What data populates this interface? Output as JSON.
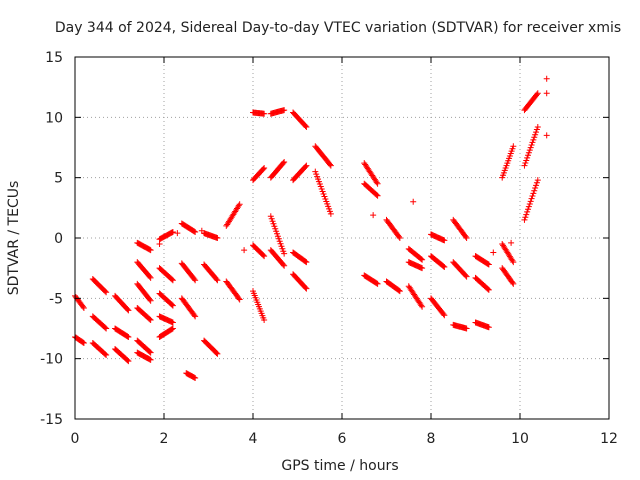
{
  "chart_data": {
    "type": "scatter",
    "title": "Day 344 of 2024, Sidereal Day-to-day VTEC variation (SDTVAR) for receiver xmis",
    "xlabel": "GPS time / hours",
    "ylabel": "SDTVAR / TECUs",
    "xlim": [
      0,
      12
    ],
    "ylim": [
      -15,
      15
    ],
    "xticks": [
      0,
      2,
      4,
      6,
      8,
      10,
      12
    ],
    "yticks": [
      -15,
      -10,
      -5,
      0,
      5,
      10,
      15
    ],
    "xtick_labels": [
      "0",
      "2",
      "4",
      "6",
      "8",
      "10",
      "12"
    ],
    "ytick_labels": [
      "-15",
      "-10",
      "-5",
      "0",
      "5",
      "10",
      "15"
    ],
    "grid": true,
    "marker": "+",
    "marker_color": "#ff0000",
    "segments": [
      {
        "x0": 0.0,
        "x1": 0.2,
        "y0": -4.8,
        "y1": -5.8
      },
      {
        "x0": 0.0,
        "x1": 0.2,
        "y0": -8.2,
        "y1": -8.7
      },
      {
        "x0": 0.4,
        "x1": 0.7,
        "y0": -3.4,
        "y1": -4.5
      },
      {
        "x0": 0.4,
        "x1": 0.7,
        "y0": -6.5,
        "y1": -7.5
      },
      {
        "x0": 0.4,
        "x1": 0.7,
        "y0": -8.7,
        "y1": -9.7
      },
      {
        "x0": 0.9,
        "x1": 1.2,
        "y0": -4.8,
        "y1": -6.0
      },
      {
        "x0": 0.9,
        "x1": 1.2,
        "y0": -7.5,
        "y1": -8.2
      },
      {
        "x0": 0.9,
        "x1": 1.2,
        "y0": -9.2,
        "y1": -10.2
      },
      {
        "x0": 1.4,
        "x1": 1.7,
        "y0": -0.4,
        "y1": -1.0
      },
      {
        "x0": 1.4,
        "x1": 1.7,
        "y0": -2.0,
        "y1": -3.3
      },
      {
        "x0": 1.4,
        "x1": 1.7,
        "y0": -3.8,
        "y1": -5.2
      },
      {
        "x0": 1.4,
        "x1": 1.7,
        "y0": -5.8,
        "y1": -6.8
      },
      {
        "x0": 1.4,
        "x1": 1.7,
        "y0": -8.5,
        "y1": -9.5
      },
      {
        "x0": 1.4,
        "x1": 1.7,
        "y0": -9.5,
        "y1": -10.1
      },
      {
        "x0": 1.9,
        "x1": 2.2,
        "y0": -0.1,
        "y1": 0.5
      },
      {
        "x0": 1.9,
        "x1": 2.2,
        "y0": -2.5,
        "y1": -3.5
      },
      {
        "x0": 1.9,
        "x1": 2.2,
        "y0": -4.6,
        "y1": -5.6
      },
      {
        "x0": 1.9,
        "x1": 2.2,
        "y0": -6.5,
        "y1": -7.0
      },
      {
        "x0": 1.9,
        "x1": 2.2,
        "y0": -8.2,
        "y1": -7.5
      },
      {
        "x0": 2.4,
        "x1": 2.7,
        "y0": 1.2,
        "y1": 0.5
      },
      {
        "x0": 2.4,
        "x1": 2.7,
        "y0": -2.1,
        "y1": -3.5
      },
      {
        "x0": 2.4,
        "x1": 2.7,
        "y0": -5.0,
        "y1": -6.5
      },
      {
        "x0": 2.5,
        "x1": 2.7,
        "y0": -11.2,
        "y1": -11.6
      },
      {
        "x0": 2.9,
        "x1": 3.2,
        "y0": 0.4,
        "y1": 0.0
      },
      {
        "x0": 2.9,
        "x1": 3.2,
        "y0": -2.2,
        "y1": -3.5
      },
      {
        "x0": 2.9,
        "x1": 3.2,
        "y0": -8.5,
        "y1": -9.6
      },
      {
        "x0": 3.4,
        "x1": 3.7,
        "y0": 1.0,
        "y1": 2.8
      },
      {
        "x0": 3.4,
        "x1": 3.7,
        "y0": -3.6,
        "y1": -5.1
      },
      {
        "x0": 4.0,
        "x1": 4.25,
        "y0": 4.8,
        "y1": 5.8
      },
      {
        "x0": 4.0,
        "x1": 4.25,
        "y0": 10.4,
        "y1": 10.3
      },
      {
        "x0": 4.0,
        "x1": 4.25,
        "y0": -0.6,
        "y1": -1.5
      },
      {
        "x0": 4.0,
        "x1": 4.25,
        "y0": -4.4,
        "y1": -6.8
      },
      {
        "x0": 4.4,
        "x1": 4.7,
        "y0": 5.0,
        "y1": 6.3
      },
      {
        "x0": 4.4,
        "x1": 4.7,
        "y0": 10.3,
        "y1": 10.6
      },
      {
        "x0": 4.4,
        "x1": 4.7,
        "y0": 1.8,
        "y1": -1.3
      },
      {
        "x0": 4.4,
        "x1": 4.7,
        "y0": -1.0,
        "y1": -2.3
      },
      {
        "x0": 4.9,
        "x1": 5.2,
        "y0": 10.4,
        "y1": 9.2
      },
      {
        "x0": 4.9,
        "x1": 5.2,
        "y0": 4.8,
        "y1": 6.0
      },
      {
        "x0": 4.9,
        "x1": 5.2,
        "y0": -1.2,
        "y1": -2.0
      },
      {
        "x0": 4.9,
        "x1": 5.2,
        "y0": -3.0,
        "y1": -4.2
      },
      {
        "x0": 5.4,
        "x1": 5.75,
        "y0": 7.6,
        "y1": 6.0
      },
      {
        "x0": 5.4,
        "x1": 5.75,
        "y0": 5.5,
        "y1": 2.0
      },
      {
        "x0": 6.5,
        "x1": 6.8,
        "y0": 6.2,
        "y1": 4.5
      },
      {
        "x0": 6.5,
        "x1": 6.8,
        "y0": 4.5,
        "y1": 3.5
      },
      {
        "x0": 6.5,
        "x1": 6.8,
        "y0": -3.1,
        "y1": -3.8
      },
      {
        "x0": 7.0,
        "x1": 7.3,
        "y0": 1.5,
        "y1": 0.0
      },
      {
        "x0": 7.0,
        "x1": 7.3,
        "y0": -3.6,
        "y1": -4.4
      },
      {
        "x0": 7.5,
        "x1": 7.8,
        "y0": -0.9,
        "y1": -1.8
      },
      {
        "x0": 7.5,
        "x1": 7.8,
        "y0": -2.0,
        "y1": -2.5
      },
      {
        "x0": 7.5,
        "x1": 7.8,
        "y0": -4.0,
        "y1": -5.7
      },
      {
        "x0": 8.0,
        "x1": 8.3,
        "y0": 0.3,
        "y1": -0.2
      },
      {
        "x0": 8.0,
        "x1": 8.3,
        "y0": -5.0,
        "y1": -6.4
      },
      {
        "x0": 8.0,
        "x1": 8.3,
        "y0": -1.5,
        "y1": -2.4
      },
      {
        "x0": 8.5,
        "x1": 8.8,
        "y0": 1.5,
        "y1": 0.0
      },
      {
        "x0": 8.5,
        "x1": 8.8,
        "y0": -2.0,
        "y1": -3.2
      },
      {
        "x0": 8.5,
        "x1": 8.8,
        "y0": -7.2,
        "y1": -7.5
      },
      {
        "x0": 9.0,
        "x1": 9.3,
        "y0": -1.5,
        "y1": -2.2
      },
      {
        "x0": 9.0,
        "x1": 9.3,
        "y0": -3.3,
        "y1": -4.3
      },
      {
        "x0": 9.0,
        "x1": 9.3,
        "y0": -7.0,
        "y1": -7.4
      },
      {
        "x0": 9.6,
        "x1": 9.85,
        "y0": 5.0,
        "y1": 7.6
      },
      {
        "x0": 9.6,
        "x1": 9.85,
        "y0": -2.5,
        "y1": -3.8
      },
      {
        "x0": 9.6,
        "x1": 9.85,
        "y0": -0.5,
        "y1": -2.0
      },
      {
        "x0": 10.1,
        "x1": 10.4,
        "y0": 10.6,
        "y1": 12.0
      },
      {
        "x0": 10.1,
        "x1": 10.4,
        "y0": 6.0,
        "y1": 9.2
      },
      {
        "x0": 10.1,
        "x1": 10.4,
        "y0": 1.5,
        "y1": 4.8
      }
    ],
    "points": [
      {
        "x": 10.6,
        "y": 13.2
      },
      {
        "x": 10.6,
        "y": 12.0
      },
      {
        "x": 10.6,
        "y": 8.5
      },
      {
        "x": 7.6,
        "y": 3.0
      },
      {
        "x": 6.7,
        "y": 1.9
      },
      {
        "x": 9.4,
        "y": -1.2
      },
      {
        "x": 9.8,
        "y": -0.4
      },
      {
        "x": 1.9,
        "y": -0.5
      },
      {
        "x": 2.3,
        "y": 0.4
      },
      {
        "x": 2.85,
        "y": 0.6
      },
      {
        "x": 3.8,
        "y": -1.0
      }
    ]
  }
}
